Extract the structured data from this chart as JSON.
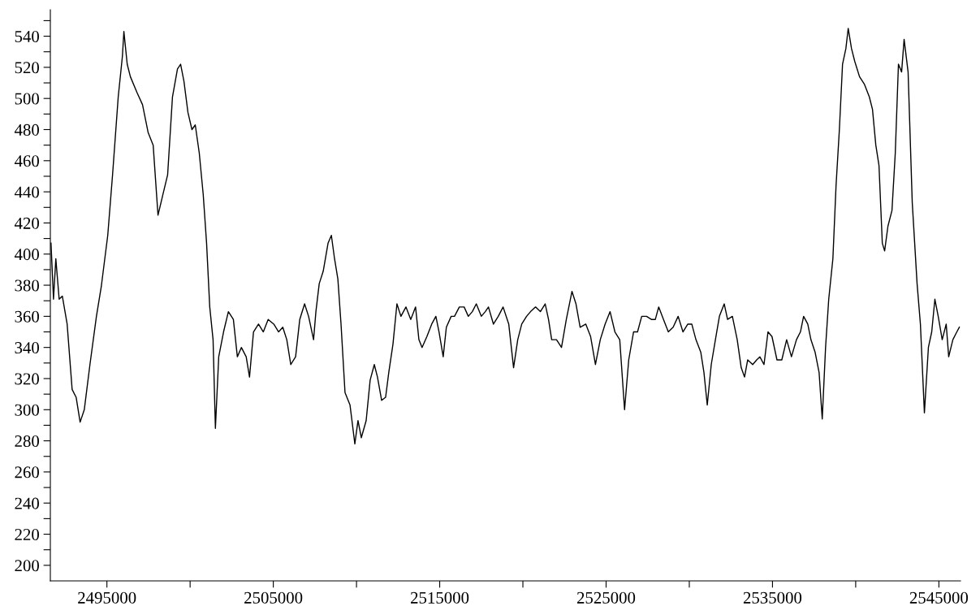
{
  "chart_data": {
    "type": "line",
    "x": [
      2491640,
      2491790,
      2491930,
      2492130,
      2492320,
      2492610,
      2492910,
      2493150,
      2493390,
      2493640,
      2493980,
      2494370,
      2494660,
      2495050,
      2495340,
      2495680,
      2495930,
      2496020,
      2496220,
      2496410,
      2496800,
      2497140,
      2497480,
      2497780,
      2498070,
      2498360,
      2498650,
      2498940,
      2499240,
      2499430,
      2499630,
      2499870,
      2500110,
      2500310,
      2500550,
      2500790,
      2500990,
      2501180,
      2501380,
      2501520,
      2501720,
      2502010,
      2502300,
      2502600,
      2502840,
      2503080,
      2503370,
      2503570,
      2503810,
      2504110,
      2504400,
      2504690,
      2505030,
      2505320,
      2505570,
      2505810,
      2506050,
      2506340,
      2506590,
      2506880,
      2507120,
      2507420,
      2507560,
      2507760,
      2508000,
      2508290,
      2508490,
      2508680,
      2508880,
      2509070,
      2509310,
      2509610,
      2509900,
      2510090,
      2510290,
      2510580,
      2510820,
      2511070,
      2511260,
      2511510,
      2511750,
      2511940,
      2512190,
      2512430,
      2512670,
      2512970,
      2513260,
      2513550,
      2513750,
      2513940,
      2514230,
      2514520,
      2514770,
      2514960,
      2515210,
      2515400,
      2515690,
      2515890,
      2516180,
      2516470,
      2516720,
      2516960,
      2517200,
      2517500,
      2517740,
      2517930,
      2518230,
      2518520,
      2518810,
      2519150,
      2519440,
      2519690,
      2519930,
      2520220,
      2520460,
      2520760,
      2521050,
      2521340,
      2521540,
      2521730,
      2522020,
      2522320,
      2522610,
      2522950,
      2523190,
      2523440,
      2523780,
      2524070,
      2524360,
      2524650,
      2524940,
      2525240,
      2525530,
      2525820,
      2526110,
      2526360,
      2526650,
      2526890,
      2527140,
      2527430,
      2527720,
      2527960,
      2528160,
      2528450,
      2528740,
      2529030,
      2529330,
      2529620,
      2529910,
      2530150,
      2530400,
      2530690,
      2530880,
      2531080,
      2531320,
      2531570,
      2531810,
      2532100,
      2532300,
      2532590,
      2532880,
      2533120,
      2533320,
      2533510,
      2533810,
      2534050,
      2534240,
      2534490,
      2534730,
      2534970,
      2535270,
      2535560,
      2535850,
      2536140,
      2536440,
      2536680,
      2536870,
      2537120,
      2537310,
      2537560,
      2537800,
      2537990,
      2538190,
      2538380,
      2538630,
      2538820,
      2539020,
      2539210,
      2539410,
      2539550,
      2539750,
      2539940,
      2540230,
      2540530,
      2540820,
      2541010,
      2541210,
      2541400,
      2541600,
      2541740,
      2541940,
      2542180,
      2542380,
      2542570,
      2542760,
      2542910,
      2543150,
      2543400,
      2543690,
      2543890,
      2544130,
      2544370,
      2544570,
      2544760,
      2544960,
      2545200,
      2545440,
      2545590,
      2545840,
      2546080,
      2546230
    ],
    "series": [
      {
        "color": "#000000",
        "values": [
          407,
          371,
          397,
          371,
          373,
          355,
          313,
          308,
          292,
          300,
          329,
          360,
          379,
          412,
          451,
          501,
          527,
          543,
          522,
          514,
          504,
          496,
          478,
          470,
          425,
          438,
          451,
          501,
          519,
          522,
          511,
          491,
          480,
          483,
          465,
          438,
          407,
          366,
          345,
          288,
          334,
          350,
          363,
          358,
          334,
          340,
          334,
          321,
          350,
          355,
          350,
          358,
          355,
          350,
          353,
          345,
          329,
          334,
          358,
          368,
          360,
          345,
          363,
          381,
          389,
          407,
          412,
          397,
          384,
          355,
          311,
          303,
          278,
          293,
          282,
          293,
          319,
          329,
          321,
          306,
          308,
          324,
          342,
          368,
          360,
          366,
          358,
          366,
          345,
          340,
          347,
          355,
          360,
          350,
          334,
          353,
          360,
          360,
          366,
          366,
          360,
          363,
          368,
          360,
          363,
          366,
          355,
          360,
          366,
          355,
          327,
          345,
          355,
          360,
          363,
          366,
          363,
          368,
          358,
          345,
          345,
          340,
          358,
          376,
          368,
          353,
          355,
          347,
          329,
          345,
          355,
          363,
          350,
          345,
          300,
          332,
          350,
          350,
          360,
          360,
          358,
          358,
          366,
          358,
          350,
          353,
          360,
          350,
          355,
          355,
          345,
          337,
          324,
          303,
          329,
          345,
          360,
          368,
          358,
          360,
          345,
          327,
          321,
          332,
          329,
          332,
          334,
          329,
          350,
          347,
          332,
          332,
          345,
          334,
          345,
          350,
          360,
          355,
          345,
          337,
          324,
          294,
          340,
          371,
          397,
          444,
          480,
          522,
          532,
          545,
          532,
          524,
          514,
          509,
          501,
          493,
          470,
          457,
          407,
          402,
          418,
          428,
          465,
          522,
          517,
          538,
          517,
          433,
          381,
          355,
          298,
          340,
          350,
          371,
          360,
          345,
          355,
          334,
          345,
          350,
          353
        ]
      }
    ],
    "xlim": [
      2491600,
      2546300
    ],
    "ylim": [
      190,
      557
    ],
    "xticks": [
      2495000,
      {
        "value": 2500000,
        "label": null
      },
      2505000,
      {
        "value": 2510000,
        "label": null
      },
      2515000,
      {
        "value": 2520000,
        "label": null
      },
      2525000,
      {
        "value": 2530000,
        "label": null
      },
      2535000,
      {
        "value": 2540000,
        "label": null
      },
      2545000
    ],
    "yticks": [
      200,
      {
        "value": 210,
        "label": null
      },
      220,
      {
        "value": 230,
        "label": null
      },
      240,
      {
        "value": 250,
        "label": null
      },
      260,
      {
        "value": 270,
        "label": null
      },
      280,
      {
        "value": 290,
        "label": null
      },
      300,
      {
        "value": 310,
        "label": null
      },
      320,
      {
        "value": 330,
        "label": null
      },
      340,
      {
        "value": 350,
        "label": null
      },
      360,
      {
        "value": 370,
        "label": null
      },
      380,
      {
        "value": 390,
        "label": null
      },
      400,
      {
        "value": 410,
        "label": null
      },
      420,
      {
        "value": 430,
        "label": null
      },
      440,
      {
        "value": 450,
        "label": null
      },
      460,
      {
        "value": 470,
        "label": null
      },
      480,
      {
        "value": 490,
        "label": null
      },
      500,
      {
        "value": 510,
        "label": null
      },
      520,
      {
        "value": 530,
        "label": null
      },
      540,
      {
        "value": 550,
        "label": null
      }
    ],
    "grid": false,
    "marker": "none",
    "line_style": "solid"
  }
}
